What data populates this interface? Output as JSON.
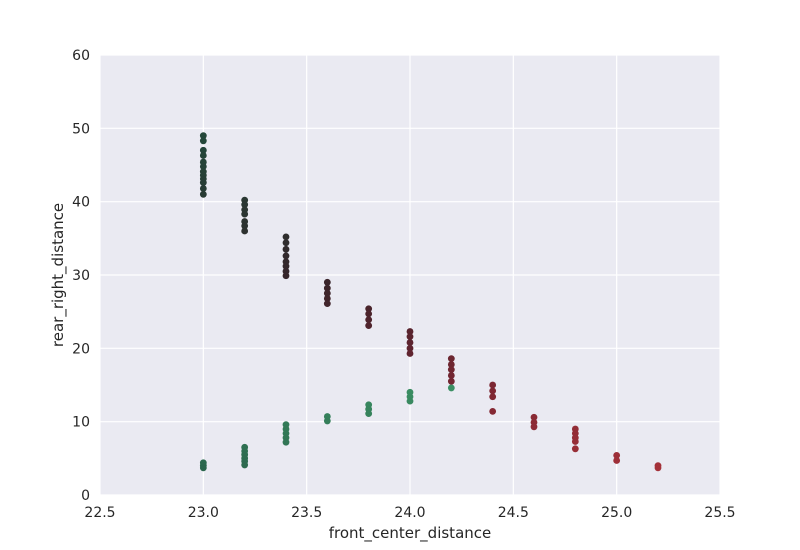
{
  "chart_data": {
    "type": "scatter",
    "title": "",
    "xlabel": "front_center_distance",
    "ylabel": "rear_right_distance",
    "xlim": [
      22.5,
      25.5
    ],
    "ylim": [
      0,
      60
    ],
    "xticks": [
      "22.5",
      "23.0",
      "23.5",
      "24.0",
      "24.5",
      "25.0",
      "25.5"
    ],
    "yticks": [
      "0",
      "10",
      "20",
      "30",
      "40",
      "50",
      "60"
    ],
    "grid": true,
    "background_color": "#EAEAF2",
    "grid_color": "#FFFFFF",
    "points": [
      {
        "x": 23.0,
        "y": 49.0,
        "color": "#24473a"
      },
      {
        "x": 23.0,
        "y": 48.3,
        "color": "#24473a"
      },
      {
        "x": 23.0,
        "y": 47.0,
        "color": "#24453a"
      },
      {
        "x": 23.0,
        "y": 46.3,
        "color": "#254539"
      },
      {
        "x": 23.0,
        "y": 45.4,
        "color": "#254338"
      },
      {
        "x": 23.0,
        "y": 44.8,
        "color": "#254238"
      },
      {
        "x": 23.0,
        "y": 44.1,
        "color": "#264237"
      },
      {
        "x": 23.0,
        "y": 43.6,
        "color": "#264137"
      },
      {
        "x": 23.0,
        "y": 43.1,
        "color": "#263f36"
      },
      {
        "x": 23.0,
        "y": 42.6,
        "color": "#273e36"
      },
      {
        "x": 23.0,
        "y": 41.8,
        "color": "#273c35"
      },
      {
        "x": 23.0,
        "y": 41.0,
        "color": "#283b34"
      },
      {
        "x": 23.2,
        "y": 40.2,
        "color": "#2a3833"
      },
      {
        "x": 23.2,
        "y": 39.6,
        "color": "#2a3733"
      },
      {
        "x": 23.2,
        "y": 38.9,
        "color": "#2b3632"
      },
      {
        "x": 23.2,
        "y": 38.3,
        "color": "#2b3532"
      },
      {
        "x": 23.2,
        "y": 37.3,
        "color": "#2c3331"
      },
      {
        "x": 23.2,
        "y": 36.7,
        "color": "#2c3231"
      },
      {
        "x": 23.2,
        "y": 36.0,
        "color": "#2d3130"
      },
      {
        "x": 23.4,
        "y": 35.2,
        "color": "#2f2e2e"
      },
      {
        "x": 23.4,
        "y": 34.4,
        "color": "#302d2e"
      },
      {
        "x": 23.4,
        "y": 33.5,
        "color": "#312b2d"
      },
      {
        "x": 23.4,
        "y": 32.6,
        "color": "#322a2d"
      },
      {
        "x": 23.4,
        "y": 31.8,
        "color": "#33292c"
      },
      {
        "x": 23.4,
        "y": 31.2,
        "color": "#34282c"
      },
      {
        "x": 23.4,
        "y": 30.5,
        "color": "#35272c"
      },
      {
        "x": 23.4,
        "y": 29.9,
        "color": "#36262b"
      },
      {
        "x": 23.6,
        "y": 29.0,
        "color": "#3a252b"
      },
      {
        "x": 23.6,
        "y": 28.2,
        "color": "#3c252b"
      },
      {
        "x": 23.6,
        "y": 27.5,
        "color": "#3e252b"
      },
      {
        "x": 23.6,
        "y": 26.8,
        "color": "#40252b"
      },
      {
        "x": 23.6,
        "y": 26.1,
        "color": "#42252c"
      },
      {
        "x": 23.8,
        "y": 25.4,
        "color": "#4a242c"
      },
      {
        "x": 23.8,
        "y": 24.7,
        "color": "#4c242c"
      },
      {
        "x": 23.8,
        "y": 23.9,
        "color": "#4e242d"
      },
      {
        "x": 23.8,
        "y": 23.1,
        "color": "#50242d"
      },
      {
        "x": 24.0,
        "y": 22.3,
        "color": "#58232e"
      },
      {
        "x": 24.0,
        "y": 21.6,
        "color": "#5a232e"
      },
      {
        "x": 24.0,
        "y": 20.8,
        "color": "#5c232f"
      },
      {
        "x": 24.0,
        "y": 20.0,
        "color": "#5e232f"
      },
      {
        "x": 24.0,
        "y": 19.3,
        "color": "#60232f"
      },
      {
        "x": 24.2,
        "y": 18.6,
        "color": "#6c2630"
      },
      {
        "x": 24.2,
        "y": 17.8,
        "color": "#6e2631"
      },
      {
        "x": 24.2,
        "y": 17.1,
        "color": "#702631"
      },
      {
        "x": 24.2,
        "y": 16.3,
        "color": "#722632"
      },
      {
        "x": 24.2,
        "y": 15.5,
        "color": "#742632"
      },
      {
        "x": 24.4,
        "y": 15.0,
        "color": "#7c2733"
      },
      {
        "x": 24.4,
        "y": 14.2,
        "color": "#7e2733"
      },
      {
        "x": 24.4,
        "y": 13.4,
        "color": "#802833"
      },
      {
        "x": 24.4,
        "y": 11.4,
        "color": "#852934"
      },
      {
        "x": 24.6,
        "y": 10.6,
        "color": "#8a2a35"
      },
      {
        "x": 24.6,
        "y": 9.9,
        "color": "#8c2b35"
      },
      {
        "x": 24.6,
        "y": 9.3,
        "color": "#8e2b36"
      },
      {
        "x": 24.8,
        "y": 9.0,
        "color": "#922c36"
      },
      {
        "x": 24.8,
        "y": 8.4,
        "color": "#932c36"
      },
      {
        "x": 24.8,
        "y": 7.8,
        "color": "#952d37"
      },
      {
        "x": 24.8,
        "y": 7.3,
        "color": "#962d37"
      },
      {
        "x": 24.8,
        "y": 6.3,
        "color": "#982e37"
      },
      {
        "x": 25.0,
        "y": 5.4,
        "color": "#9c2f38"
      },
      {
        "x": 25.0,
        "y": 4.7,
        "color": "#9e2f38"
      },
      {
        "x": 25.2,
        "y": 4.0,
        "color": "#a33039"
      },
      {
        "x": 25.2,
        "y": 3.7,
        "color": "#a43139"
      },
      {
        "x": 23.0,
        "y": 4.4,
        "color": "#2c6a4f"
      },
      {
        "x": 23.0,
        "y": 4.0,
        "color": "#2c684e"
      },
      {
        "x": 23.0,
        "y": 3.7,
        "color": "#2b664d"
      },
      {
        "x": 23.2,
        "y": 6.5,
        "color": "#2f7052"
      },
      {
        "x": 23.2,
        "y": 6.0,
        "color": "#2f6f52"
      },
      {
        "x": 23.2,
        "y": 5.5,
        "color": "#2e6d51"
      },
      {
        "x": 23.2,
        "y": 5.0,
        "color": "#2e6c50"
      },
      {
        "x": 23.2,
        "y": 4.6,
        "color": "#2d6b50"
      },
      {
        "x": 23.2,
        "y": 4.1,
        "color": "#2d6a4f"
      },
      {
        "x": 23.4,
        "y": 9.6,
        "color": "#337b58"
      },
      {
        "x": 23.4,
        "y": 9.0,
        "color": "#337a57"
      },
      {
        "x": 23.4,
        "y": 8.4,
        "color": "#327856"
      },
      {
        "x": 23.4,
        "y": 7.8,
        "color": "#327755"
      },
      {
        "x": 23.4,
        "y": 7.2,
        "color": "#317555"
      },
      {
        "x": 23.6,
        "y": 10.7,
        "color": "#35805b"
      },
      {
        "x": 23.6,
        "y": 10.1,
        "color": "#357e5a"
      },
      {
        "x": 23.8,
        "y": 12.3,
        "color": "#37865e"
      },
      {
        "x": 23.8,
        "y": 11.7,
        "color": "#37845d"
      },
      {
        "x": 23.8,
        "y": 11.1,
        "color": "#36835c"
      },
      {
        "x": 24.0,
        "y": 14.0,
        "color": "#3a8c62"
      },
      {
        "x": 24.0,
        "y": 13.4,
        "color": "#398b61"
      },
      {
        "x": 24.0,
        "y": 12.8,
        "color": "#398960"
      },
      {
        "x": 24.2,
        "y": 14.6,
        "color": "#3b8f64"
      }
    ]
  }
}
